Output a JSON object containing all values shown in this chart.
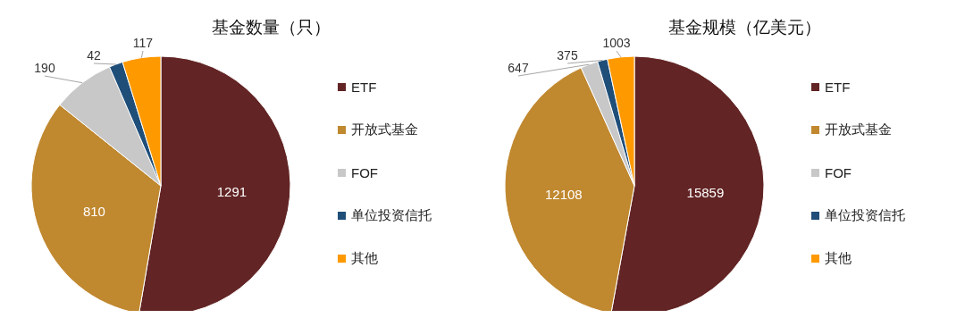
{
  "chart_data": [
    {
      "type": "pie",
      "title": "基金数量（只）",
      "categories": [
        "ETF",
        "开放式基金",
        "FOF",
        "单位投资信托",
        "其他"
      ],
      "values": [
        1291,
        810,
        190,
        42,
        117
      ],
      "colors": [
        "#622424",
        "#c0882f",
        "#c8c8c8",
        "#1f4e79",
        "#ff9900"
      ],
      "data_labels": true,
      "legend": "right"
    },
    {
      "type": "pie",
      "title": "基金规模（亿美元）",
      "categories": [
        "ETF",
        "开放式基金",
        "FOF",
        "单位投资信托",
        "其他"
      ],
      "values": [
        15859,
        12108,
        647,
        375,
        1003
      ],
      "colors": [
        "#622424",
        "#c0882f",
        "#c8c8c8",
        "#1f4e79",
        "#ff9900"
      ],
      "data_labels": true,
      "legend": "right"
    }
  ]
}
